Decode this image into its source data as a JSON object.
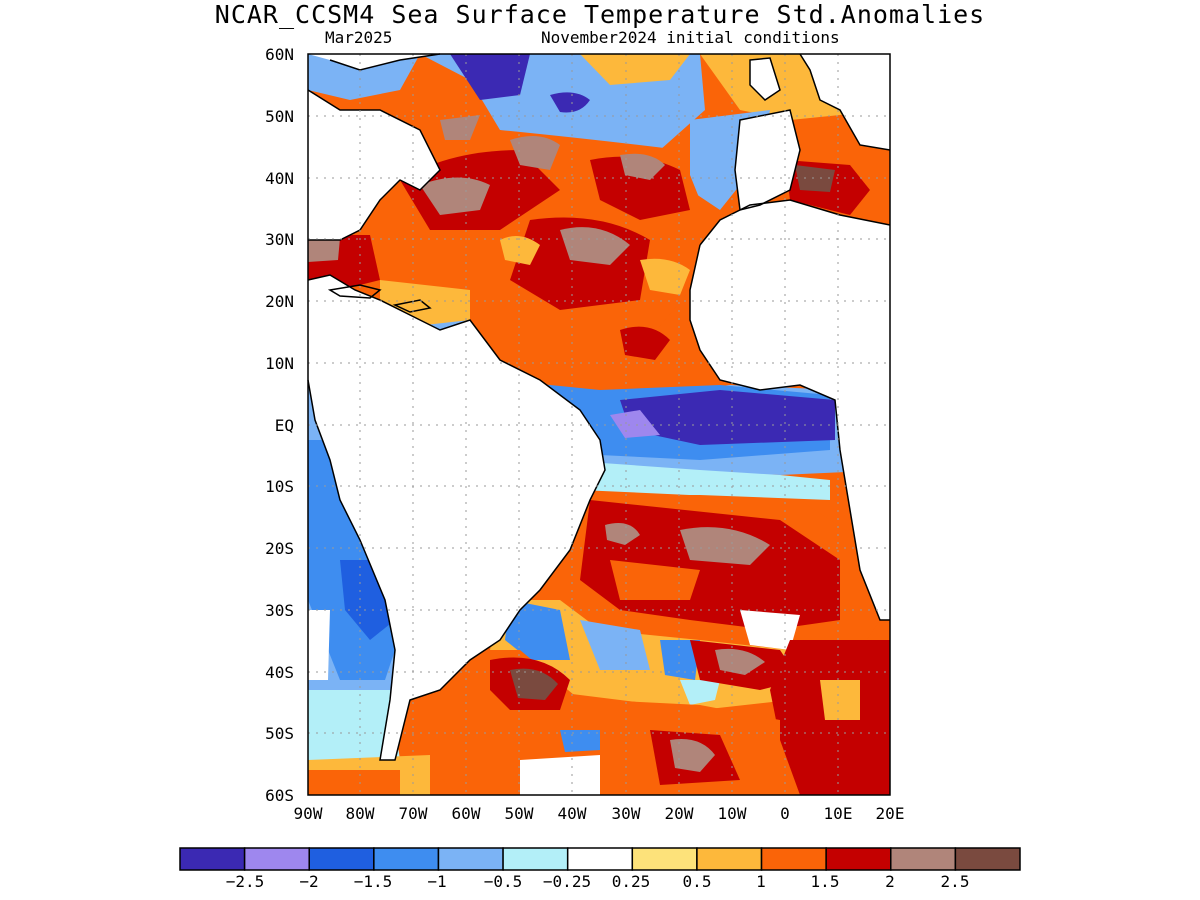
{
  "header": {
    "title": "NCAR_CCSM4 Sea Surface Temperature Std.Anomalies",
    "valid_month": "Mar2025",
    "init_conditions": "November2024 initial conditions"
  },
  "axes": {
    "lat_labels": [
      "60N",
      "50N",
      "40N",
      "30N",
      "20N",
      "10N",
      "EQ",
      "10S",
      "20S",
      "30S",
      "40S",
      "50S",
      "60S"
    ],
    "lon_labels": [
      "90W",
      "80W",
      "70W",
      "60W",
      "50W",
      "40W",
      "30W",
      "20W",
      "10W",
      "0",
      "10E",
      "20E"
    ]
  },
  "colorbar": {
    "colors": [
      "#3b29b3",
      "#9e87ee",
      "#1f5fe0",
      "#3e8df0",
      "#7bb3f5",
      "#b3eff8",
      "#ffffff",
      "#fde27a",
      "#fdb83b",
      "#fa6408",
      "#c40000",
      "#b0857a",
      "#7a4a3f"
    ],
    "labels": [
      "-2.5",
      "-2",
      "-1.5",
      "-1",
      "-0.5",
      "-0.25",
      "0.25",
      "0.5",
      "1",
      "1.5",
      "2",
      "2.5"
    ]
  },
  "map": {
    "region": "Atlantic Ocean, 60S-60N, 90W-20E",
    "land_color": "#ffffff",
    "coastline_color": "#000000"
  }
}
